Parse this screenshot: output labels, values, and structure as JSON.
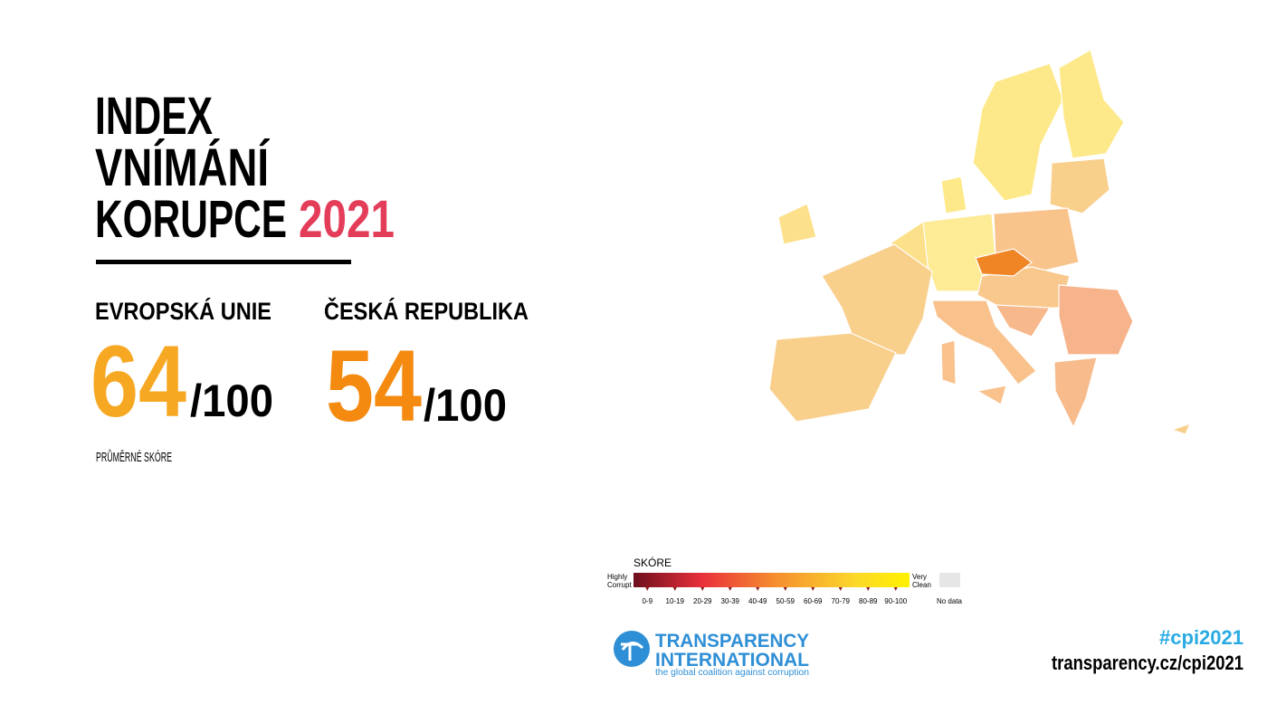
{
  "title": {
    "lines": [
      "INDEX",
      "VNÍMÁNÍ",
      "KORUPCE"
    ],
    "year": "2021"
  },
  "stats": [
    {
      "label": "EVROPSKÁ UNIE",
      "score": "64",
      "max": "/100",
      "note": "PRŮMĚRNÉ SKÓRE"
    },
    {
      "label": "ČESKÁ REPUBLIKA",
      "score": "54",
      "max": "/100"
    }
  ],
  "legend": {
    "title": "SKÓRE",
    "low": [
      "Highly",
      "Corrupt"
    ],
    "high": [
      "Very",
      "Clean"
    ],
    "ranges": [
      "0-9",
      "10-19",
      "20-29",
      "30-39",
      "40-49",
      "50-59",
      "60-69",
      "70-79",
      "80-89",
      "90-100"
    ],
    "no_data": "No data"
  },
  "logo": {
    "line1": "TRANSPARENCY",
    "line2": "INTERNATIONAL",
    "tagline": "the global coalition against corruption"
  },
  "footer": {
    "hashtag": "#cpi2021",
    "url": "transparency.cz/cpi2021"
  }
}
